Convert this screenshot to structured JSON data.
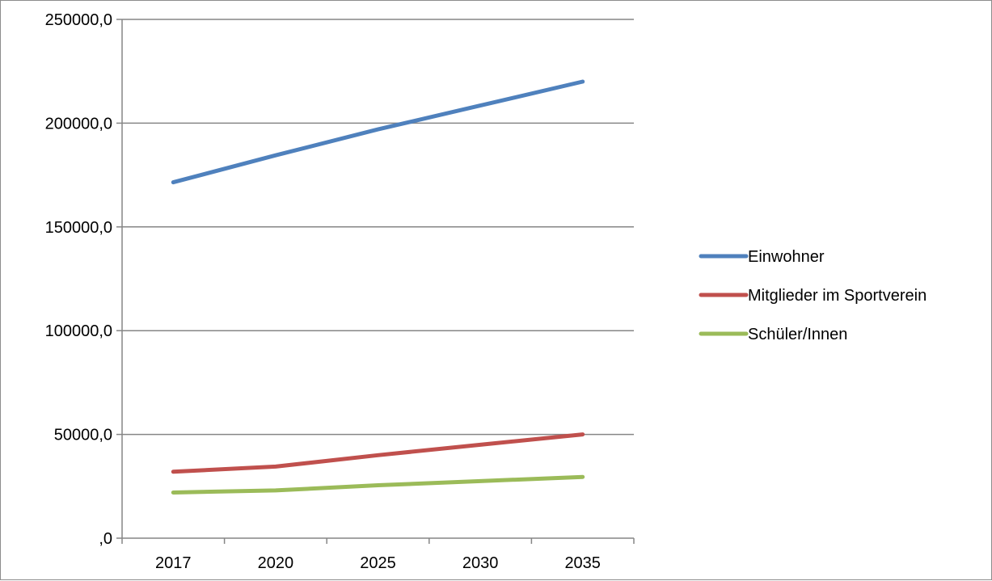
{
  "chart_data": {
    "type": "line",
    "title": "",
    "xlabel": "",
    "ylabel": "",
    "categories": [
      "2017",
      "2020",
      "2025",
      "2030",
      "2035"
    ],
    "ylim": [
      0,
      250000
    ],
    "yticks": [
      0,
      50000,
      100000,
      150000,
      200000,
      250000
    ],
    "ytick_labels": [
      ",0",
      "50000,0",
      "100000,0",
      "150000,0",
      "200000,0",
      "250000,0"
    ],
    "grid": true,
    "legend_position": "right",
    "series": [
      {
        "name": "Einwohner",
        "color": "#4f81bd",
        "values": [
          171500,
          184500,
          197000,
          208500,
          220000
        ]
      },
      {
        "name": "Mitglieder im Sportverein",
        "color": "#c0504d",
        "values": [
          32000,
          34500,
          40000,
          45000,
          50000
        ]
      },
      {
        "name": "Schüler/Innen",
        "color": "#9bbb59",
        "values": [
          22000,
          23000,
          25500,
          27500,
          29500
        ]
      }
    ]
  }
}
